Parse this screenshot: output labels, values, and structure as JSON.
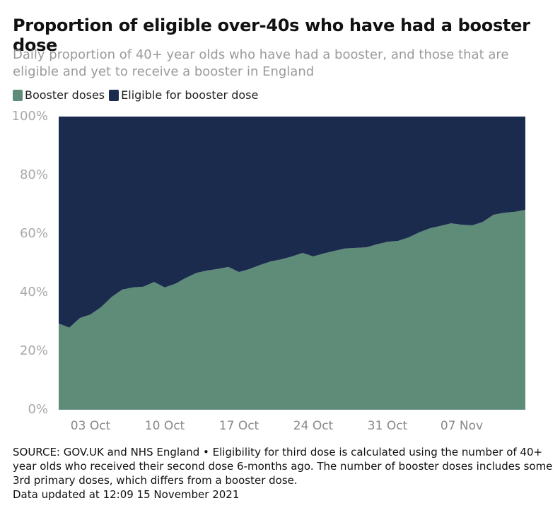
{
  "chart_data": {
    "type": "area",
    "stacked": true,
    "title": "Proportion of eligible over-40s who have had a booster dose",
    "subtitle": "Daily proportion of 40+ year olds who have had a booster, and those that are eligible and yet to receive a booster in England",
    "categories": [
      null,
      null,
      null,
      "03 Oct",
      null,
      null,
      null,
      null,
      null,
      null,
      "10 Oct",
      null,
      null,
      null,
      null,
      null,
      null,
      "17 Oct",
      null,
      null,
      null,
      null,
      null,
      null,
      "24 Oct",
      null,
      null,
      null,
      null,
      null,
      null,
      "31 Oct",
      null,
      null,
      null,
      null,
      null,
      null,
      "07 Nov",
      null,
      null,
      null,
      null,
      null,
      null
    ],
    "series": [
      {
        "name": "Booster doses",
        "color": "#5f8b79",
        "values": [
          29.4,
          28,
          31.3,
          32.5,
          35,
          38.5,
          41,
          41.7,
          42,
          43.6,
          41.7,
          43,
          45,
          46.7,
          47.5,
          48,
          48.7,
          47,
          48,
          49.4,
          50.6,
          51.3,
          52.3,
          53.5,
          52.3,
          53.3,
          54.2,
          55,
          55.2,
          55.4,
          56.4,
          57.3,
          57.6,
          58.8,
          60.5,
          61.9,
          62.7,
          63.6,
          63.1,
          62.9,
          64.1,
          66.5,
          67.2,
          67.5,
          68.2
        ]
      },
      {
        "name": "Eligible for booster dose",
        "color": "#1b2b4d",
        "values": [
          70.6,
          72,
          68.7,
          67.5,
          65,
          61.5,
          59,
          58.3,
          58,
          56.4,
          58.3,
          57,
          55,
          53.3,
          52.5,
          52,
          51.3,
          53,
          52,
          50.6,
          49.4,
          48.7,
          47.7,
          46.5,
          47.7,
          46.7,
          45.8,
          45,
          44.8,
          44.6,
          43.6,
          42.7,
          42.4,
          41.2,
          39.5,
          38.1,
          37.3,
          36.4,
          36.9,
          37.1,
          35.9,
          33.5,
          32.8,
          32.5,
          31.8
        ]
      }
    ],
    "ylim": [
      0,
      100
    ],
    "yticks": [
      {
        "value": 0,
        "label": "0%"
      },
      {
        "value": 20,
        "label": "20%"
      },
      {
        "value": 40,
        "label": "40%"
      },
      {
        "value": 60,
        "label": "60%"
      },
      {
        "value": 80,
        "label": "80%"
      },
      {
        "value": 100,
        "label": "100%"
      }
    ],
    "source": "SOURCE: GOV.UK and NHS England • Eligibility for third dose is calculated using the number of 40+ year olds who received their second dose 6-months ago. The number of booster doses includes some 3rd primary doses, which differs from a booster dose.",
    "updated": "Data updated at 12:09 15 November 2021"
  }
}
